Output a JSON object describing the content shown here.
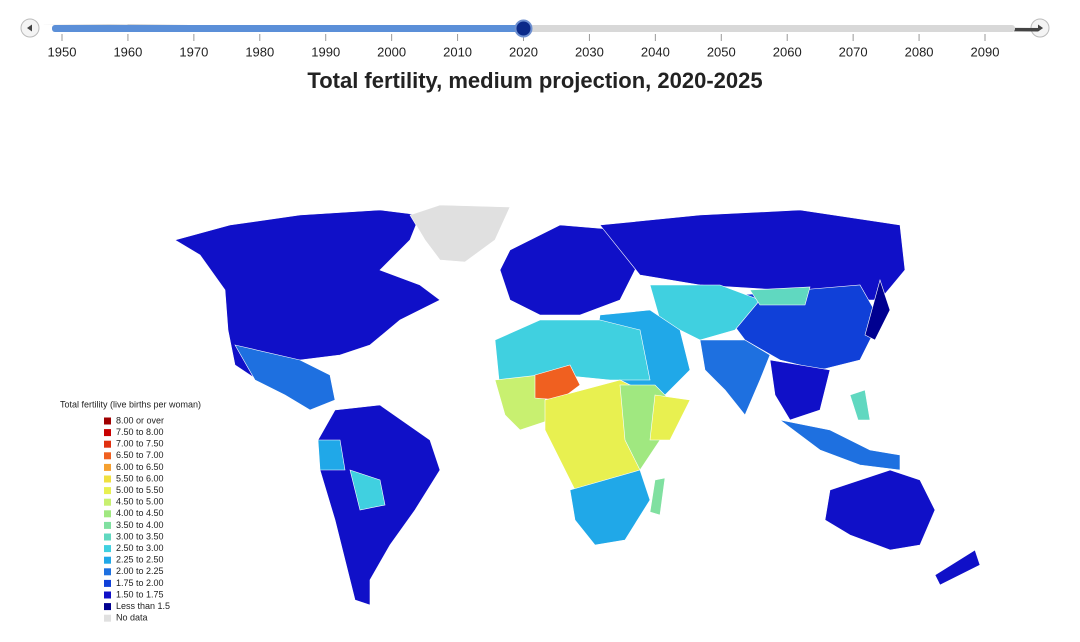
{
  "timeline": {
    "ticks": [
      1950,
      1960,
      1970,
      1980,
      1990,
      2000,
      2010,
      2020,
      2030,
      2040,
      2050,
      2060,
      2070,
      2080,
      2090
    ],
    "value": 2020
  },
  "title": "Total fertility, medium projection, 2020-2025",
  "legend": {
    "title": "Total fertility (live births per woman)",
    "items": [
      {
        "label": "8.00 or over",
        "color": "#a00000"
      },
      {
        "label": "7.50 to 8.00",
        "color": "#c80000"
      },
      {
        "label": "7.00 to 7.50",
        "color": "#e03010"
      },
      {
        "label": "6.50 to 7.00",
        "color": "#f06020"
      },
      {
        "label": "6.00 to 6.50",
        "color": "#f5a030"
      },
      {
        "label": "5.50 to 6.00",
        "color": "#f0e040"
      },
      {
        "label": "5.00 to 5.50",
        "color": "#e8f050"
      },
      {
        "label": "4.50 to 5.00",
        "color": "#c8f070"
      },
      {
        "label": "4.00 to 4.50",
        "color": "#a0e880"
      },
      {
        "label": "3.50 to 4.00",
        "color": "#80e0a0"
      },
      {
        "label": "3.00 to 3.50",
        "color": "#60d8c0"
      },
      {
        "label": "2.50 to 3.00",
        "color": "#40d0e0"
      },
      {
        "label": "2.25 to 2.50",
        "color": "#20a8e8"
      },
      {
        "label": "2.00 to 2.25",
        "color": "#1e70e0"
      },
      {
        "label": "1.75 to 2.00",
        "color": "#1040d8"
      },
      {
        "label": "1.50 to 1.75",
        "color": "#1010c8"
      },
      {
        "label": "Less than 1.5",
        "color": "#000090"
      },
      {
        "label": "No data",
        "color": "#e0e0e0"
      }
    ]
  }
}
